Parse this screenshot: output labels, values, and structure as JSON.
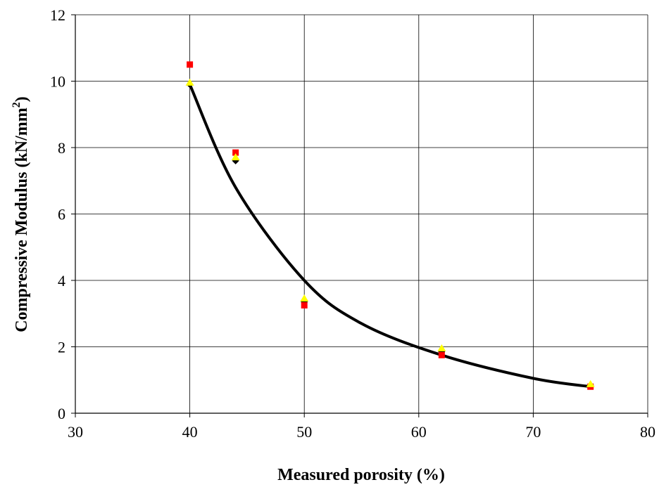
{
  "chart_data": {
    "type": "scatter",
    "xlabel": "Measured porosity (%)",
    "ylabel": "Compressive Modulus (kN/mm",
    "ylabel_sup": "2",
    "ylabel_close": ")",
    "xlim": [
      30,
      80
    ],
    "ylim": [
      0,
      12
    ],
    "xticks": [
      30,
      40,
      50,
      60,
      70,
      80
    ],
    "yticks": [
      0,
      2,
      4,
      6,
      8,
      10,
      12
    ],
    "grid": true,
    "series": [
      {
        "marker": "diamond",
        "color": "#000000",
        "points": [
          [
            40,
            9.9
          ],
          [
            44,
            7.6
          ],
          [
            50,
            3.35
          ],
          [
            62,
            1.85
          ],
          [
            75,
            0.83
          ]
        ]
      },
      {
        "marker": "square",
        "color": "#ff0000",
        "points": [
          [
            40,
            10.5
          ],
          [
            44,
            7.85
          ],
          [
            50,
            3.25
          ],
          [
            62,
            1.75
          ],
          [
            75,
            0.8
          ]
        ]
      },
      {
        "marker": "triangle",
        "color": "#ffff00",
        "points": [
          [
            40,
            9.95
          ],
          [
            44,
            7.7
          ],
          [
            50,
            3.45
          ],
          [
            62,
            1.95
          ],
          [
            75,
            0.87
          ]
        ]
      }
    ],
    "trendline": {
      "color": "#000000",
      "x_range": [
        40,
        75
      ],
      "points": [
        [
          40,
          9.9
        ],
        [
          44,
          6.8
        ],
        [
          50,
          4.0
        ],
        [
          55,
          2.7
        ],
        [
          62,
          1.75
        ],
        [
          70,
          1.05
        ],
        [
          75,
          0.8
        ]
      ]
    }
  }
}
